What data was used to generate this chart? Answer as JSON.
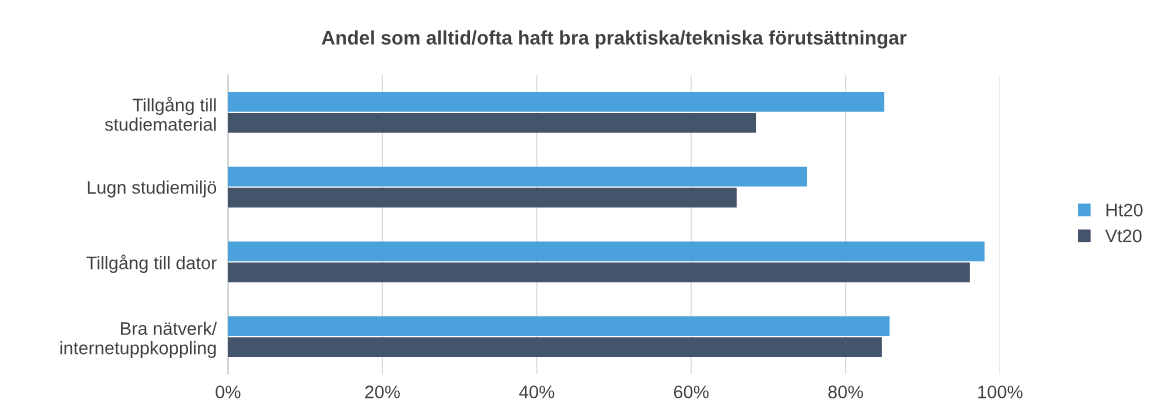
{
  "chart_data": {
    "type": "bar",
    "orientation": "horizontal",
    "title": "Andel som alltid/ofta haft bra praktiska/tekniska förutsättningar",
    "categories": [
      "Tillgång till\nstudiematerial",
      "Lugn studiemiljö",
      "Tillgång till dator",
      "Bra nätverk/\ninternetuppkoppling"
    ],
    "series": [
      {
        "name": "Ht20",
        "color": "#4aa1dc",
        "values": [
          85,
          75,
          98,
          85.7
        ]
      },
      {
        "name": "Vt20",
        "color": "#44546a",
        "values": [
          68.4,
          65.9,
          96.1,
          84.7
        ]
      }
    ],
    "xlim": [
      0,
      100
    ],
    "xticks": [
      {
        "value": 0,
        "label": "0%"
      },
      {
        "value": 20,
        "label": "20%"
      },
      {
        "value": 40,
        "label": "40%"
      },
      {
        "value": 60,
        "label": "60%"
      },
      {
        "value": 80,
        "label": "80%"
      },
      {
        "value": 100,
        "label": "100%"
      }
    ],
    "grid": "x",
    "legend": "right"
  }
}
